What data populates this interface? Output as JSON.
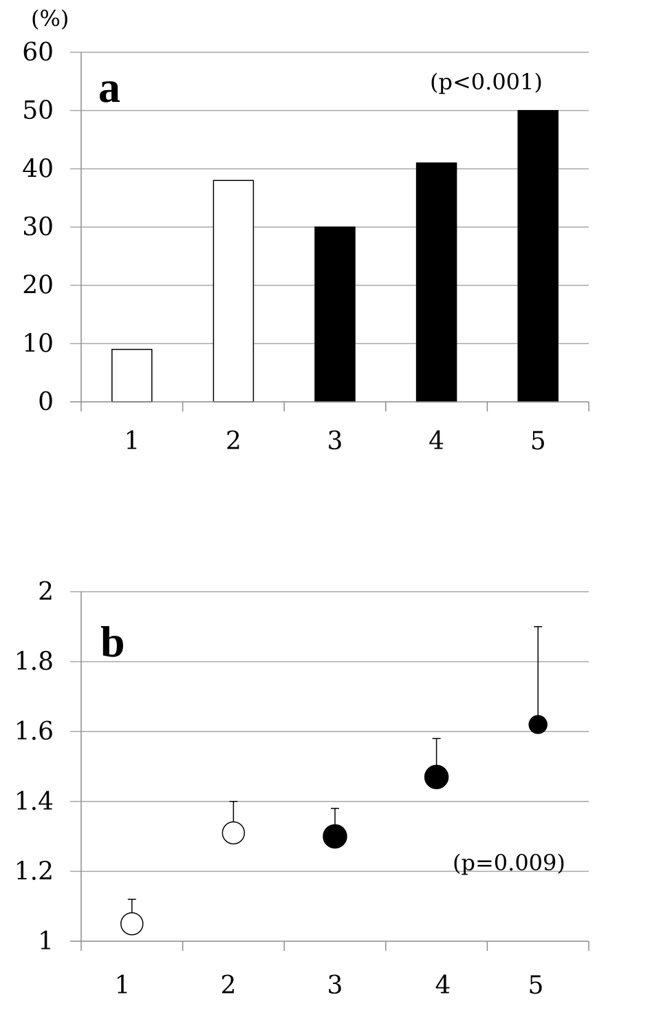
{
  "chart_data": [
    {
      "type": "bar",
      "panel_label": "a",
      "ylabel": "(%)",
      "annotation": "(p<0.001)",
      "categories": [
        "1",
        "2",
        "3",
        "4",
        "5"
      ],
      "values": [
        9,
        38,
        30,
        41,
        50
      ],
      "fills": [
        "#ffffff",
        "#ffffff",
        "#000000",
        "#000000",
        "#000000"
      ],
      "ylim": [
        0,
        60
      ],
      "yticks": [
        0,
        10,
        20,
        30,
        40,
        50,
        60
      ],
      "grid": true
    },
    {
      "type": "scatter",
      "panel_label": "b",
      "annotation": "(p=0.009)",
      "categories": [
        "1",
        "2",
        "3",
        "4",
        "5"
      ],
      "values": [
        1.05,
        1.31,
        1.3,
        1.47,
        1.62
      ],
      "error_upper": [
        1.12,
        1.4,
        1.38,
        1.58,
        1.9
      ],
      "fills": [
        "#ffffff",
        "#ffffff",
        "#000000",
        "#000000",
        "#000000"
      ],
      "ylim": [
        1,
        2
      ],
      "yticks": [
        "1",
        "1.2",
        "1.4",
        "1.6",
        "1.8",
        "2"
      ],
      "grid": true
    }
  ]
}
